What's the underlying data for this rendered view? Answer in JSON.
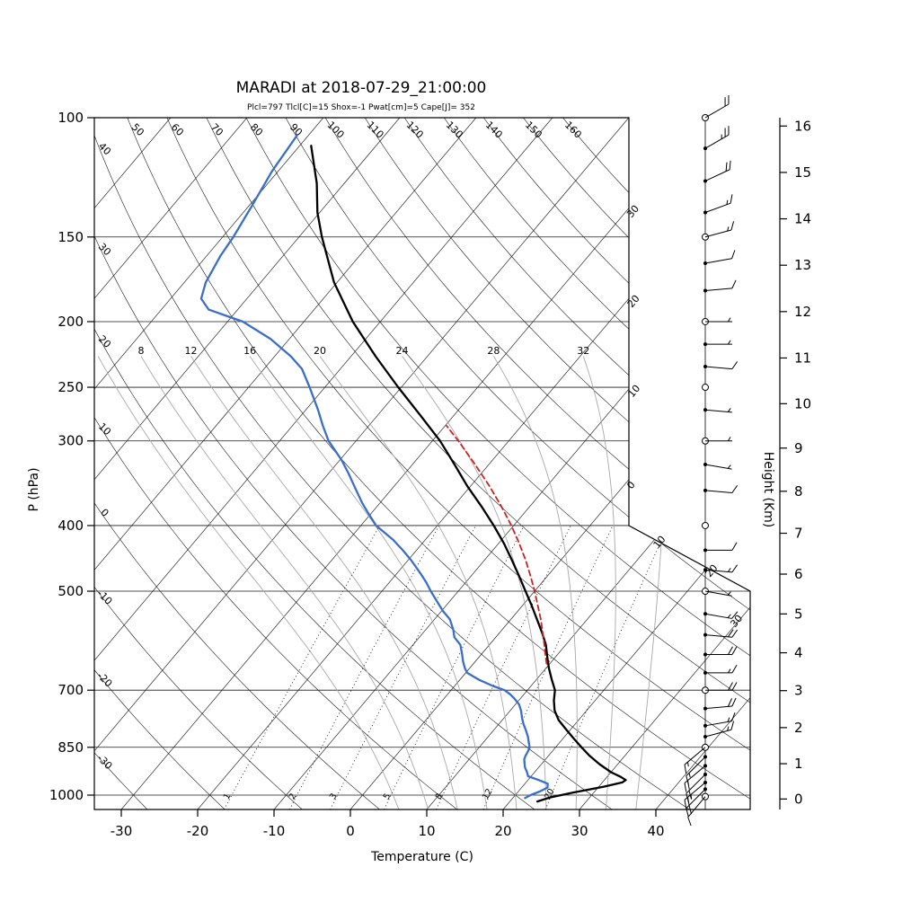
{
  "header": {
    "title": "MARADI at 2018-07-29_21:00:00",
    "params": "Plcl=797 Tlcl[C]=15 Shox=-1 Pwat[cm]=5 Cape[J]= 352"
  },
  "colors": {
    "subtitle": "#b03a2e",
    "temperature": "#000000",
    "dewpoint": "#3a6ec8",
    "parcel": "#cc2222",
    "grid": "#1a1a1a",
    "moist_adiabat": "#a8a8a8"
  },
  "chart_data": {
    "type": "line",
    "subtype": "skew-t-log-p-sounding",
    "title": "MARADI at 2018-07-29_21:00:00",
    "params_line": "Plcl=797 Tlcl[C]=15 Shox=-1 Pwat[cm]=5 Cape[J]= 352",
    "station": "MARADI",
    "datetime": "2018-07-29_21:00:00",
    "indices": {
      "Plcl": 797,
      "Tlcl_C": 15,
      "Shox": -1,
      "Pwat_cm": 5,
      "Cape_J": 352
    },
    "xlabel": "Temperature (C)",
    "ylabel": "P (hPa)",
    "y2label": "Height (Km)",
    "x_ticks": [
      -30,
      -20,
      -10,
      0,
      10,
      20,
      30,
      40
    ],
    "pressure_ticks": [
      100,
      150,
      200,
      250,
      300,
      400,
      500,
      700,
      850,
      1000
    ],
    "height_ticks_km": [
      0,
      1,
      2,
      3,
      4,
      5,
      6,
      7,
      8,
      9,
      10,
      11,
      12,
      13,
      14,
      15,
      16
    ],
    "p_range": [
      100,
      1050
    ],
    "dry_adiabats_c": [
      -30,
      -20,
      -10,
      0,
      10,
      20,
      30,
      40,
      50,
      60,
      70,
      80,
      90,
      100,
      110,
      120,
      130,
      140,
      150,
      160
    ],
    "dry_adiabat_top_labels": [
      50,
      60,
      70,
      80,
      90,
      100,
      110,
      120,
      130,
      140,
      150,
      160
    ],
    "dry_adiabat_left_labels": [
      40,
      30,
      20,
      10,
      0,
      -10,
      -20,
      -30
    ],
    "isotherm_label_values": [
      -30,
      -20,
      -10,
      0,
      10,
      20,
      30
    ],
    "isotherm_right_labels": [
      "30",
      "20",
      "10",
      "0",
      "10",
      "20",
      "30"
    ],
    "moist_adiabats_c": [
      8,
      12,
      16,
      20,
      24,
      28,
      32
    ],
    "moist_adiabats_extra_c": [
      4,
      36
    ],
    "mixing_ratio_gkg": [
      1,
      2,
      3,
      5,
      8,
      12,
      20
    ],
    "series": [
      {
        "name": "temperature",
        "color": "#000000",
        "style": "solid",
        "points": [
          [
            1022,
            23.6
          ],
          [
            1008,
            24.8
          ],
          [
            990,
            27.5
          ],
          [
            972,
            30.6
          ],
          [
            958,
            32.6
          ],
          [
            950,
            32.8
          ],
          [
            940,
            31.8
          ],
          [
            925,
            30.0
          ],
          [
            900,
            27.6
          ],
          [
            875,
            25.4
          ],
          [
            850,
            23.4
          ],
          [
            825,
            21.4
          ],
          [
            800,
            19.4
          ],
          [
            775,
            17.4
          ],
          [
            750,
            15.8
          ],
          [
            725,
            14.6
          ],
          [
            700,
            13.6
          ],
          [
            675,
            12.0
          ],
          [
            650,
            10.4
          ],
          [
            625,
            8.9
          ],
          [
            600,
            7.4
          ],
          [
            575,
            5.5
          ],
          [
            550,
            3.4
          ],
          [
            525,
            1.2
          ],
          [
            500,
            -1.2
          ],
          [
            475,
            -3.7
          ],
          [
            450,
            -6.4
          ],
          [
            425,
            -9.3
          ],
          [
            400,
            -12.6
          ],
          [
            375,
            -16.3
          ],
          [
            350,
            -20.4
          ],
          [
            325,
            -24.5
          ],
          [
            300,
            -29.0
          ],
          [
            275,
            -34.4
          ],
          [
            250,
            -40.4
          ],
          [
            225,
            -46.8
          ],
          [
            200,
            -53.6
          ],
          [
            175,
            -60.4
          ],
          [
            150,
            -67.0
          ],
          [
            138,
            -70.3
          ],
          [
            125,
            -73.6
          ],
          [
            110,
            -78.5
          ]
        ]
      },
      {
        "name": "dewpoint",
        "color": "#3a6ec8",
        "style": "solid",
        "points": [
          [
            1010,
            21.6
          ],
          [
            1000,
            22.0
          ],
          [
            988,
            22.8
          ],
          [
            975,
            23.4
          ],
          [
            962,
            23.0
          ],
          [
            950,
            21.4
          ],
          [
            938,
            19.6
          ],
          [
            925,
            19.0
          ],
          [
            910,
            18.2
          ],
          [
            900,
            17.8
          ],
          [
            885,
            17.2
          ],
          [
            875,
            17.0
          ],
          [
            860,
            16.8
          ],
          [
            850,
            16.6
          ],
          [
            835,
            15.9
          ],
          [
            820,
            15.2
          ],
          [
            800,
            14.1
          ],
          [
            785,
            13.2
          ],
          [
            770,
            12.4
          ],
          [
            750,
            11.4
          ],
          [
            735,
            10.5
          ],
          [
            720,
            9.2
          ],
          [
            710,
            8.2
          ],
          [
            700,
            7.0
          ],
          [
            690,
            5.0
          ],
          [
            675,
            2.4
          ],
          [
            660,
            0.2
          ],
          [
            650,
            -0.6
          ],
          [
            635,
            -1.6
          ],
          [
            620,
            -2.5
          ],
          [
            600,
            -3.8
          ],
          [
            585,
            -5.4
          ],
          [
            570,
            -6.4
          ],
          [
            550,
            -8.0
          ],
          [
            535,
            -9.8
          ],
          [
            520,
            -11.4
          ],
          [
            500,
            -13.6
          ],
          [
            485,
            -15.2
          ],
          [
            470,
            -17.0
          ],
          [
            450,
            -19.6
          ],
          [
            435,
            -21.8
          ],
          [
            420,
            -24.2
          ],
          [
            400,
            -28.0
          ],
          [
            385,
            -30.2
          ],
          [
            370,
            -32.4
          ],
          [
            350,
            -35.2
          ],
          [
            335,
            -37.4
          ],
          [
            320,
            -39.8
          ],
          [
            300,
            -43.6
          ],
          [
            285,
            -46.0
          ],
          [
            270,
            -48.4
          ],
          [
            250,
            -52.0
          ],
          [
            235,
            -55.0
          ],
          [
            225,
            -57.9
          ],
          [
            212,
            -62.5
          ],
          [
            200,
            -68.0
          ],
          [
            192,
            -73.8
          ],
          [
            185,
            -76.0
          ],
          [
            175,
            -77.2
          ],
          [
            160,
            -78.2
          ],
          [
            150,
            -78.6
          ],
          [
            135,
            -79.6
          ],
          [
            120,
            -80.8
          ],
          [
            106,
            -81.5
          ]
        ]
      },
      {
        "name": "parcel",
        "color": "#cc2222",
        "style": "dashed",
        "points": [
          [
            640,
            9.6
          ],
          [
            620,
            8.4
          ],
          [
            600,
            7.2
          ],
          [
            575,
            5.6
          ],
          [
            550,
            3.9
          ],
          [
            525,
            2.0
          ],
          [
            500,
            0.0
          ],
          [
            475,
            -2.2
          ],
          [
            450,
            -4.6
          ],
          [
            425,
            -7.3
          ],
          [
            400,
            -10.3
          ],
          [
            375,
            -13.7
          ],
          [
            350,
            -17.5
          ],
          [
            325,
            -21.8
          ],
          [
            300,
            -26.6
          ],
          [
            285,
            -29.8
          ]
        ]
      }
    ],
    "wind_barbs": [
      {
        "p": 100,
        "spd": 20,
        "dir": 60,
        "marker": "circle"
      },
      {
        "p": 111,
        "spd": 25,
        "dir": 60,
        "marker": "dot"
      },
      {
        "p": 124,
        "spd": 20,
        "dir": 65,
        "marker": "dot"
      },
      {
        "p": 138,
        "spd": 15,
        "dir": 70,
        "marker": "dot"
      },
      {
        "p": 150,
        "spd": 15,
        "dir": 75,
        "marker": "circle"
      },
      {
        "p": 164,
        "spd": 10,
        "dir": 80,
        "marker": "dot"
      },
      {
        "p": 180,
        "spd": 10,
        "dir": 85,
        "marker": "dot"
      },
      {
        "p": 200,
        "spd": 5,
        "dir": 90,
        "marker": "circle"
      },
      {
        "p": 216,
        "spd": 5,
        "dir": 90,
        "marker": "dot"
      },
      {
        "p": 233,
        "spd": 10,
        "dir": 95,
        "marker": "dot"
      },
      {
        "p": 250,
        "spd": 0,
        "dir": 0,
        "marker": "circle"
      },
      {
        "p": 270,
        "spd": 5,
        "dir": 95,
        "marker": "dot"
      },
      {
        "p": 300,
        "spd": 5,
        "dir": 90,
        "marker": "circle"
      },
      {
        "p": 325,
        "spd": 5,
        "dir": 100,
        "marker": "dot"
      },
      {
        "p": 355,
        "spd": 10,
        "dir": 95,
        "marker": "dot"
      },
      {
        "p": 400,
        "spd": 0,
        "dir": 0,
        "marker": "circle"
      },
      {
        "p": 435,
        "spd": 10,
        "dir": 90,
        "marker": "dot"
      },
      {
        "p": 465,
        "spd": 15,
        "dir": 95,
        "marker": "dot"
      },
      {
        "p": 500,
        "spd": 5,
        "dir": 100,
        "marker": "circle"
      },
      {
        "p": 540,
        "spd": 15,
        "dir": 100,
        "marker": "dot"
      },
      {
        "p": 580,
        "spd": 20,
        "dir": 95,
        "marker": "dot"
      },
      {
        "p": 620,
        "spd": 20,
        "dir": 90,
        "marker": "dot"
      },
      {
        "p": 660,
        "spd": 15,
        "dir": 90,
        "marker": "dot"
      },
      {
        "p": 700,
        "spd": 20,
        "dir": 90,
        "marker": "circle"
      },
      {
        "p": 745,
        "spd": 20,
        "dir": 85,
        "marker": "dot"
      },
      {
        "p": 790,
        "spd": 15,
        "dir": 80,
        "marker": "dot"
      },
      {
        "p": 820,
        "spd": 15,
        "dir": 75,
        "marker": "dot"
      },
      {
        "p": 850,
        "spd": 15,
        "dir": 230,
        "marker": "circle"
      },
      {
        "p": 878,
        "spd": 15,
        "dir": 225,
        "marker": "dot"
      },
      {
        "p": 905,
        "spd": 20,
        "dir": 230,
        "marker": "dot"
      },
      {
        "p": 932,
        "spd": 20,
        "dir": 225,
        "marker": "dot"
      },
      {
        "p": 958,
        "spd": 25,
        "dir": 230,
        "marker": "dot"
      },
      {
        "p": 980,
        "spd": 20,
        "dir": 225,
        "marker": "dot"
      },
      {
        "p": 1005,
        "spd": 10,
        "dir": 220,
        "marker": "circle"
      }
    ],
    "legend_position": "none",
    "grid": true
  }
}
